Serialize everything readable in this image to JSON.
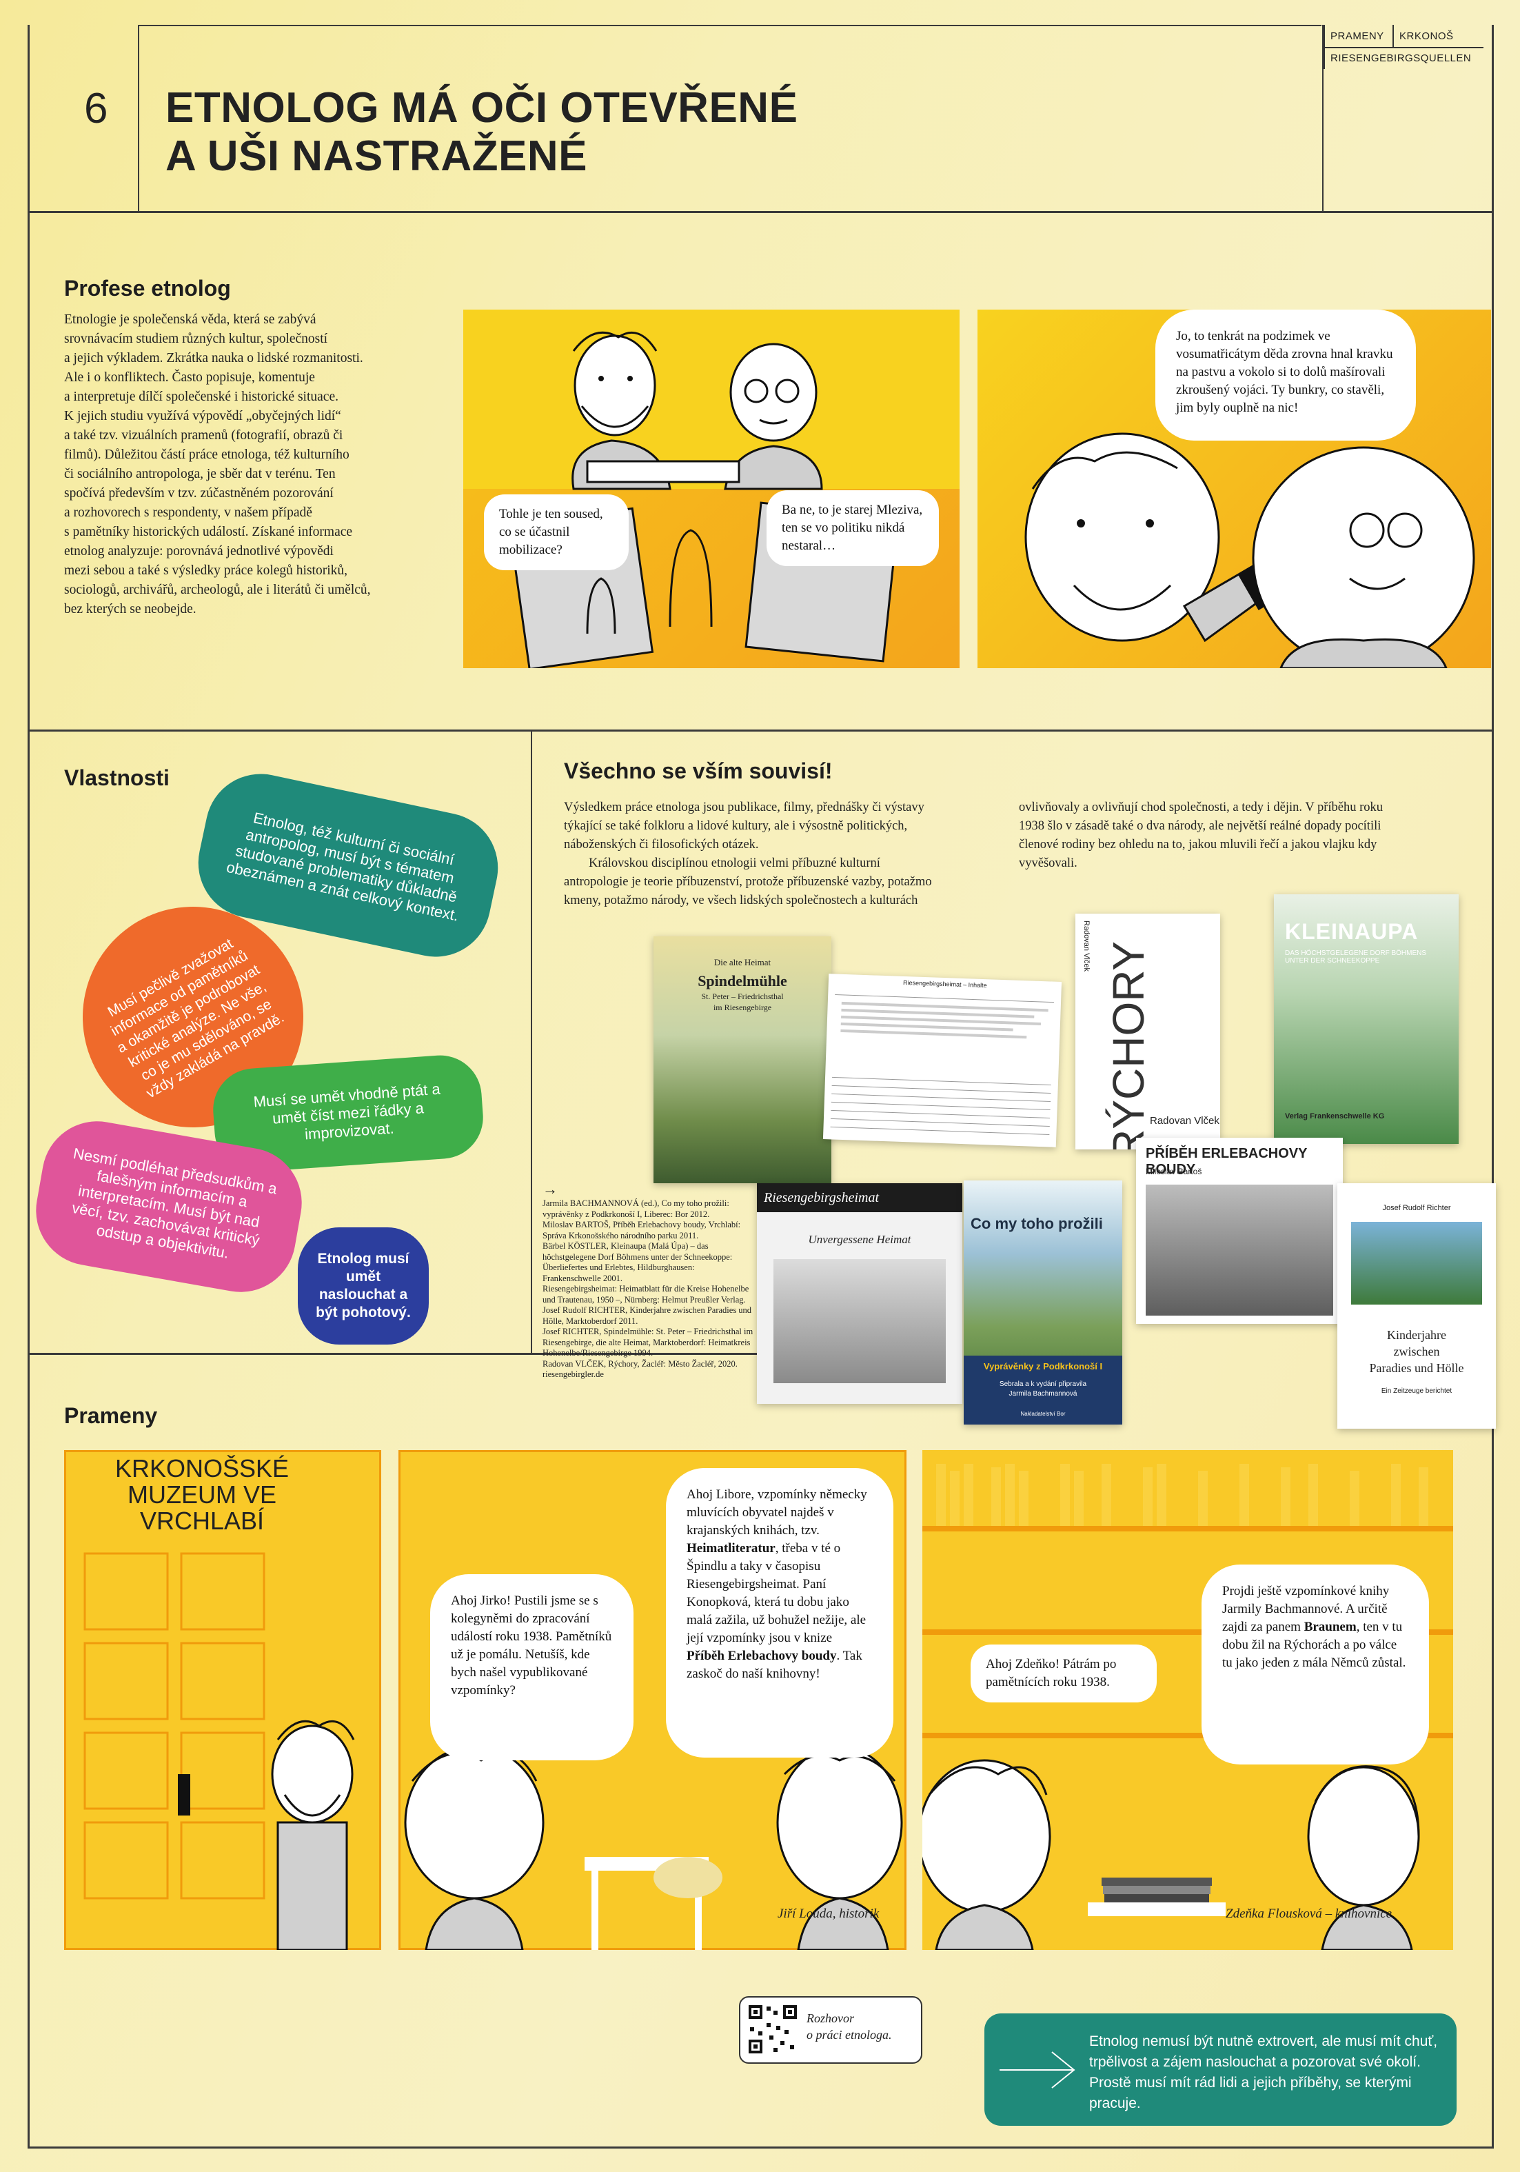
{
  "brand": {
    "word1": "PRAMENY",
    "word2": "KRKONOŠ",
    "word3": "RIESENGEBIRGSQUELLEN"
  },
  "header": {
    "number": "6",
    "title_line1": "ETNOLOG MÁ OČI OTEVŘENÉ",
    "title_line2": "A UŠI NASTRAŽENÉ"
  },
  "profese": {
    "heading": "Profese etnolog",
    "lines": [
      "Etnologie je společenská věda, která se zabývá",
      "srovnávacím studiem různých kultur, společností",
      "a jejich výkladem. Zkrátka nauka o lidské rozmanitosti.",
      "Ale i o konfliktech. Často popisuje, komentuje",
      "a interpretuje dílčí společenské i historické situace.",
      "K jejich studiu využívá výpovědí „obyčejných lidí“",
      "a také tzv. vizuálních pramenů (fotografií, obrazů či",
      "filmů). Důležitou částí práce etnologa, též kulturního",
      "či sociálního antropologa, je sběr dat v terénu. Ten",
      "spočívá především v tzv. zúčastněném pozorování",
      "a rozhovorech s respondenty, v našem případě",
      "s pamětníky historických událostí. Získané informace",
      "etnolog analyzuje: porovnává jednotlivé výpovědi",
      "mezi sebou a také s výsledky práce kolegů historiků,",
      "sociologů, archivářů, archeologů, ale i literátů či umělců,",
      "bez kterých se neobejde."
    ]
  },
  "comic1": {
    "bubble_left": "Tohle je ten soused, co se účastnil mobilizace?",
    "bubble_right": "Ba ne, to je starej Mleziva, ten se vo politiku nikdá nestaral…",
    "bubble_big": "Jo, to tenkrát na podzimek ve vosumatřicátym děda zrovna hnal kravku na pastvu a vokolo si to dolů mašírovali zkroušený vojáci. Ty bunkry, co stavěli, jim byly ouplně na nic!"
  },
  "vlastnosti": {
    "heading": "Vlastnosti",
    "bubbles": [
      "Etnolog, též kulturní či sociální antropolog, musí být s tématem studované problematiky důkladně obeznámen a znát celkový kontext.",
      "Musí pečlivě zvažovat informace od pamětníků a okamžitě je podrobovat kritické analýze. Ne vše, co je mu sdělováno, se vždy zakládá na pravdě.",
      "Musí se umět vhodně ptát a umět číst mezi řádky a improvizovat.",
      "Nesmí podléhat předsudkům a falešným informacím a interpretacím. Musí být nad věcí, tzv. zachovávat kritický odstup a objektivitu.",
      "Etnolog musí umět naslouchat a být pohotový."
    ]
  },
  "souvisi": {
    "heading": "Všechno se vším souvisí!",
    "col1": [
      "Výsledkem práce etnologa jsou publikace, filmy, přednášky či výstavy",
      "týkající se také folkloru a lidové kultury, ale i výsostně politických,",
      "náboženských či filosofických otázek.",
      "Královskou disciplínou etnologii velmi příbuzné kulturní",
      "antropologie je teorie příbuzenství, protože příbuzenské vazby, potažmo",
      "kmeny, potažmo národy, ve všech lidských společnostech a kulturách"
    ],
    "col2": [
      "ovlivňovaly a ovlivňují chod společnosti, a tedy i dějin. V příběhu roku",
      "1938 šlo v zásadě také o dva národy, ale největší reálné dopady pocítili",
      "členové rodiny bez ohledu na to, jakou mluvili řečí a jakou vlajku kdy",
      "vyvěšovali."
    ],
    "arrow": "→",
    "refs": [
      "Jarmila BACHMANNOVÁ (ed.), Co my toho prožili:",
      "vyprávěnky z Podkrkonoší I, Liberec: Bor 2012.",
      "Miloslav BARTOŠ, Příběh Erlebachovy boudy, Vrchlabí:",
      "Správa Krkonošského národního parku 2011.",
      "Bärbel KÖSTLER, Kleinaupa (Malá Úpa) – das",
      "höchstgelegene Dorf Böhmens unter der Schneekoppe:",
      "Überliefertes und Erlebtes, Hildburghausen:",
      "Frankenschwelle 2001.",
      "Riesengebirgsheimat: Heimatblatt für die Kreise Hohenelbe",
      "und Trautenau, 1950 –, Nürnberg: Helmut Preußler Verlag.",
      "Josef Rudolf RICHTER, Kinderjahre zwischen Paradies und",
      "Hölle, Marktoberdorf 2011.",
      "Josef RICHTER, Spindelmühle: St. Peter – Friedrichsthal im",
      "Riesengebirge, die alte Heimat, Marktoberdorf: Heimatkreis",
      "Hohenelbe/Riesengebirge 1994.",
      "Radovan VLČEK, Rýchory, Žacléř: Město Žacléř, 2020.",
      "riesengebirgler.de"
    ]
  },
  "books": {
    "spindel_top": "Die alte Heimat",
    "spindel_title": "Spindelmühle",
    "spindel_sub1": "St. Peter – Friedrichsthal",
    "spindel_sub2": "im Riesengebirge",
    "rychory_author_side": "Radovan Vlček",
    "rychory_title": "RÝCHORY",
    "rychory_author": "Radovan Vlček",
    "kleinaupa_title": "KLEINAUPA",
    "kleinaupa_sub": "DAS HÖCHSTGELEGENE DORF BÖHMENS UNTER DER SCHNEEKOPPE",
    "kleinaupa_pub": "Verlag Frankenschwelle KG",
    "heimat_mast": "Riesengebirgsheimat",
    "heimat_story": "Unvergessene Heimat",
    "coproz_title": "Co my toho prožili",
    "coproz_sub": "Vyprávěnky z Podkrkonoší I",
    "coproz_ed1": "Sebrala a k vydání připravila",
    "coproz_ed2": "Jarmila Bachmannová",
    "coproz_pub": "Nakladatelství Bor",
    "erlebach_title": "PŘÍBĚH ERLEBACHOVY BOUDY",
    "erlebach_author": "Miloslav Bartoš",
    "richter_author": "Josef Rudolf Richter",
    "richter_t1": "Kinderjahre",
    "richter_t2": "zwischen",
    "richter_t3": "Paradies und Hölle",
    "richter_sub": "Ein Zeitzeuge berichtet",
    "web_title": "Riesengebirgsheimat – Inhalte"
  },
  "prameny": {
    "heading": "Prameny",
    "museum_sign": "KRKONOŠSKÉ MUZEUM VE VRCHLABÍ",
    "bubble_jirka": "Ahoj Jirko! Pustili jsme se s kolegyněmi do zpracování událostí roku 1938. Pamětníků už je pomálu. Netušíš, kde bych našel vypublikované vzpomínky?",
    "bubble_libor_1": "Ahoj Libore, vzpomínky německy mluvících obyvatel najdeš v krajanských knihách, tzv. ",
    "bubble_libor_b1": "Heimatliteratur",
    "bubble_libor_2": ", třeba v té o Špindlu a taky v časopisu Riesengebirgsheimat. Paní Konopková, která tu dobu jako malá zažila, už bohužel nežije, ale její vzpomínky jsou v knize ",
    "bubble_libor_b2": "Příběh Erlebachovy boudy",
    "bubble_libor_3": ". Tak zaskoč do naší knihovny!",
    "bubble_zdenka": "Ahoj Zdeňko! Pátrám po pamětnících roku 1938.",
    "bubble_final_1": "Projdi ještě vzpomínkové knihy Jarmily Bachmannové. A určitě zajdi za panem ",
    "bubble_final_b": "Braunem",
    "bubble_final_2": ", ten v tu dobu žil na Rýchorách a po válce tu jako jeden z mála Němců zůstal.",
    "caption_louda": "Jiří Louda, historik",
    "caption_flouskova": "Zdeňka Flousková – knihovnice"
  },
  "footer": {
    "qr_line1": "Rozhovor",
    "qr_line2": "o práci etnologa.",
    "callout": "Etnolog nemusí být nutně extrovert, ale musí mít chuť, trpělivost a zájem naslouchat a pozorovat své okolí. Prostě musí mít rád lidi a jejich příběhy, se kterými pracuje."
  },
  "colors": {
    "teal": "#1f8a7a",
    "orange": "#ef6a2b",
    "green": "#3fae49",
    "pink": "#e0559a",
    "blue": "#2c3e9e",
    "yellow": "#f7c21b",
    "amber": "#f4a51c"
  }
}
